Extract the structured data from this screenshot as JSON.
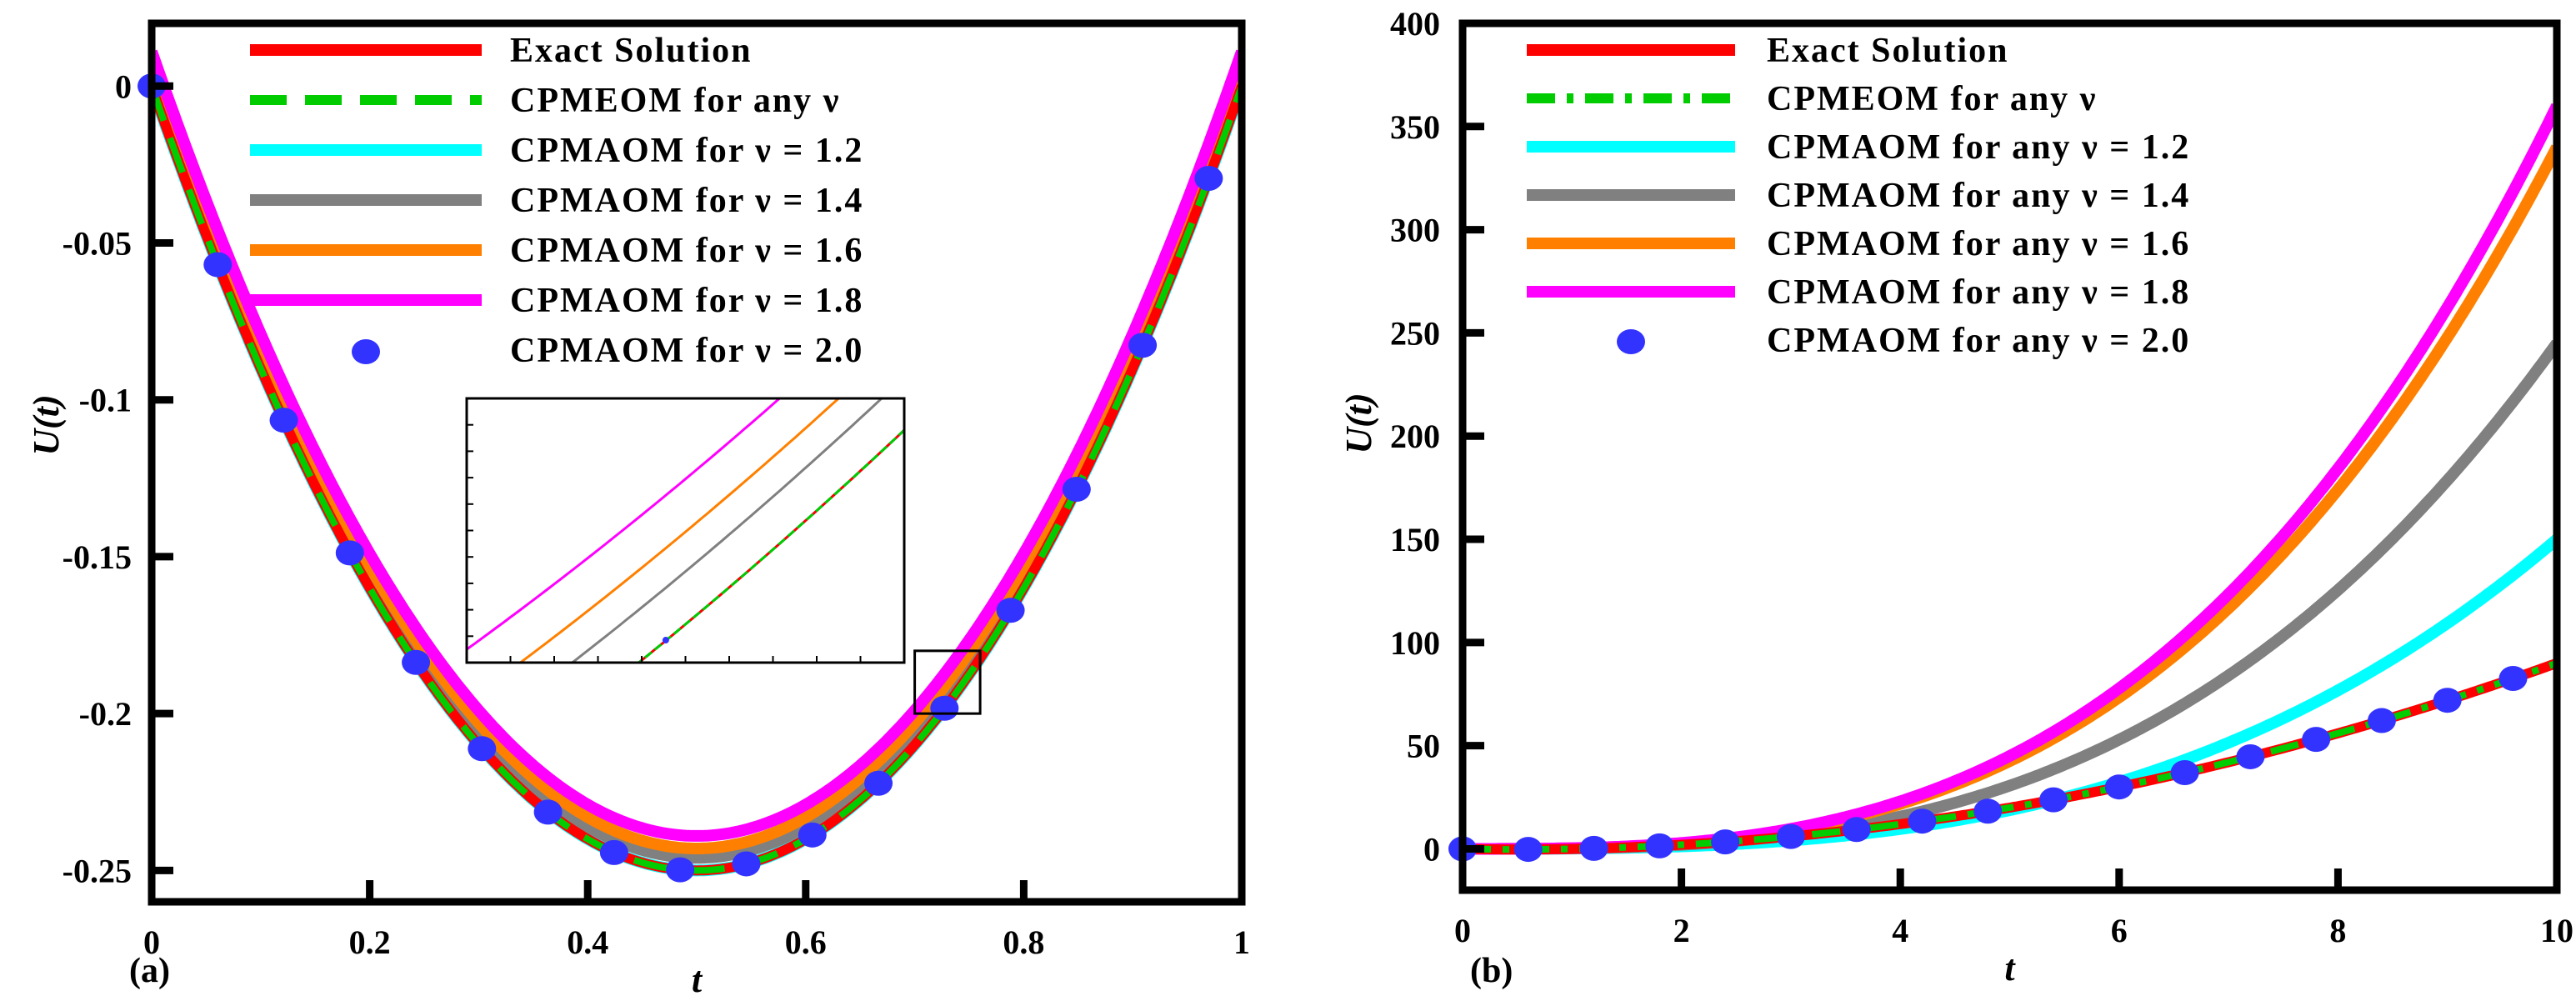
{
  "chart_data": [
    {
      "id": "a",
      "type": "line",
      "panel_label": "(a)",
      "xlabel": "t",
      "ylabel": "U(t)",
      "xlim": [
        0,
        1
      ],
      "ylim": [
        -0.26,
        0.02
      ],
      "xticks": [
        0,
        0.2,
        0.4,
        0.6,
        0.8,
        1
      ],
      "xtick_labels": [
        "0",
        "0.2",
        "0.4",
        "0.6",
        "0.8",
        "1"
      ],
      "yticks": [
        0,
        -0.05,
        -0.1,
        -0.15,
        -0.2,
        -0.25
      ],
      "ytick_labels": [
        "0",
        "-0.05",
        "-0.1",
        "-0.15",
        "-0.2",
        "-0.25"
      ],
      "legend_position": "top",
      "series": [
        {
          "name": "Exact Solution",
          "style": "solid",
          "color": "#ff0000",
          "curve": "t^2 - t"
        },
        {
          "name": "CPMEOM for any ν",
          "style": "dashed",
          "color": "#00cc00",
          "curve": "t^2 - t"
        },
        {
          "name": "CPMAOM for ν = 1.2",
          "style": "solid",
          "color": "#00ffff",
          "curve": "t^2 - t"
        },
        {
          "name": "CPMAOM for ν = 1.4",
          "style": "solid",
          "color": "#808080",
          "curve": "t^2 - t + 0.004"
        },
        {
          "name": "CPMAOM for ν = 1.6",
          "style": "solid",
          "color": "#ff8000",
          "curve": "t^2 - t + 0.007"
        },
        {
          "name": "CPMAOM for ν = 1.8",
          "style": "solid",
          "color": "#ff00ff",
          "curve": "t^2 - t + 0.011"
        },
        {
          "name": "CPMAOM for ν = 2.0",
          "style": "markers",
          "color": "#3333ff",
          "points": {
            "x": [
              0,
              0.0606,
              0.1212,
              0.1818,
              0.2424,
              0.303,
              0.3636,
              0.4242,
              0.4848,
              0.5455,
              0.6061,
              0.6667,
              0.7273,
              0.7879,
              0.8485,
              0.9091,
              0.9697
            ],
            "y": [
              0,
              -0.0569,
              -0.1065,
              -0.1488,
              -0.1837,
              -0.2112,
              -0.2314,
              -0.2443,
              -0.2498,
              -0.2479,
              -0.2387,
              -0.2222,
              -0.1983,
              -0.1671,
              -0.1285,
              -0.0826,
              -0.0294
            ]
          }
        }
      ],
      "inset": {
        "source_box": {
          "x": [
            0.7,
            0.76
          ],
          "y": [
            -0.2,
            -0.18
          ]
        },
        "view": {
          "x": [
            0.7,
            0.76
          ],
          "y": [
            -0.2,
            -0.18
          ]
        },
        "marker_point": {
          "x": 0.7273,
          "y": -0.1983
        }
      }
    },
    {
      "id": "b",
      "type": "line",
      "panel_label": "(b)",
      "xlabel": "t",
      "ylabel": "U(t)",
      "xlim": [
        0,
        10
      ],
      "ylim": [
        -20,
        400
      ],
      "xticks": [
        0,
        2,
        4,
        6,
        8,
        10
      ],
      "xtick_labels": [
        "0",
        "2",
        "4",
        "6",
        "8",
        "10"
      ],
      "yticks": [
        0,
        50,
        100,
        150,
        200,
        250,
        300,
        350,
        400
      ],
      "ytick_labels": [
        "0",
        "50",
        "100",
        "150",
        "200",
        "250",
        "300",
        "350",
        "400"
      ],
      "legend_position": "top",
      "series": [
        {
          "name": "Exact Solution",
          "style": "solid",
          "color": "#ff0000",
          "curve": "t^2 - t"
        },
        {
          "name": "CPMEOM for any ν",
          "style": "dashdot",
          "color": "#00cc00",
          "curve": "t^2 - t"
        },
        {
          "name": "CPMAOM for any ν = 1.2",
          "style": "solid",
          "color": "#00ffff",
          "curve": "0.15*t^3"
        },
        {
          "name": "CPMAOM for any ν = 1.4",
          "style": "solid",
          "color": "#808080",
          "curve": "0.245*t^3"
        },
        {
          "name": "CPMAOM for any ν = 1.6",
          "style": "solid",
          "color": "#ff8000",
          "curve": "0.34*t^3"
        },
        {
          "name": "CPMAOM for any ν = 1.8",
          "style": "solid",
          "color": "#ff00ff",
          "curve": "0.36*t^3"
        },
        {
          "name": "CPMAOM for any ν = 2.0",
          "style": "markers",
          "color": "#3333ff",
          "points": {
            "x": [
              0,
              0.6,
              1.2,
              1.8,
              2.4,
              3.0,
              3.6,
              4.2,
              4.8,
              5.4,
              6.0,
              6.6,
              7.2,
              7.8,
              8.4,
              9.0,
              9.6
            ],
            "y": [
              0,
              -0.24,
              0.24,
              1.44,
              3.36,
              6.0,
              9.36,
              13.44,
              18.24,
              23.76,
              30.0,
              36.96,
              44.64,
              53.04,
              62.16,
              72.0,
              82.56
            ]
          }
        }
      ]
    }
  ]
}
